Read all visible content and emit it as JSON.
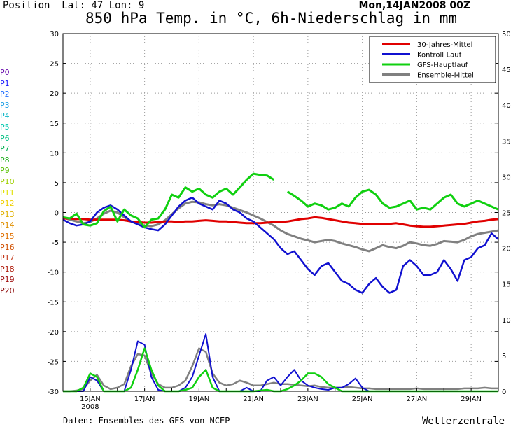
{
  "header": {
    "position_text": "Position  Lat: 47 Lon: 9",
    "date_text": "Mon,14JAN2008 00Z"
  },
  "footer": {
    "source": "Daten: Ensembles des GFS von NCEP",
    "brand": "Wetterzentrale"
  },
  "members": [
    "P0",
    "P1",
    "P2",
    "P3",
    "P4",
    "P5",
    "P6",
    "P7",
    "P8",
    "P9",
    "P10",
    "P11",
    "P12",
    "P13",
    "P14",
    "P15",
    "P16",
    "P17",
    "P18",
    "P19",
    "P20"
  ],
  "member_colors": [
    "#6a0dad",
    "#1a1aff",
    "#1f6fff",
    "#1ea0e6",
    "#10b8c8",
    "#00c8b0",
    "#00c080",
    "#00b050",
    "#22b022",
    "#55c000",
    "#a0d000",
    "#e0e000",
    "#f0d000",
    "#e0b000",
    "#e09000",
    "#e07000",
    "#d05000",
    "#c03010",
    "#b02010",
    "#a01010",
    "#901010"
  ],
  "chart_data": {
    "type": "line",
    "title": "850 hPa Temp. in °C, 6h-Niederschlag in mm",
    "x_tick_labels": [
      "15JAN",
      "17JAN",
      "19JAN",
      "21JAN",
      "23JAN",
      "25JAN",
      "27JAN",
      "29JAN"
    ],
    "x_tick_sublabel": "2008",
    "x_range_days": [
      14.0,
      30.0
    ],
    "x_ticks_days": [
      15,
      17,
      19,
      21,
      23,
      25,
      27,
      29
    ],
    "ylim_left": [
      -30,
      30
    ],
    "yticks_left": [
      30,
      25,
      20,
      15,
      10,
      5,
      0,
      -5,
      -10,
      -15,
      -20,
      -25,
      -30
    ],
    "ylim_right": [
      0,
      50
    ],
    "yticks_right": [
      50,
      45,
      40,
      35,
      30,
      25,
      20,
      15,
      10,
      5,
      0
    ],
    "grid": true,
    "legend_position": "top-right",
    "legend": [
      {
        "label": "30-Jahres-Mittel",
        "color": "#e00000"
      },
      {
        "label": "Kontroll-Lauf",
        "color": "#1010d0"
      },
      {
        "label": "GFS-Hauptlauf",
        "color": "#10d010"
      },
      {
        "label": "Ensemble-Mittel",
        "color": "#808080"
      }
    ],
    "temp_x_days": [
      14.0,
      14.25,
      14.5,
      14.75,
      15.0,
      15.25,
      15.5,
      15.75,
      16.0,
      16.25,
      16.5,
      16.75,
      17.0,
      17.25,
      17.5,
      17.75,
      18.0,
      18.25,
      18.5,
      18.75,
      19.0,
      19.25,
      19.5,
      19.75,
      20.0,
      20.25,
      20.5,
      20.75,
      21.0,
      21.25,
      21.5,
      21.75,
      22.0,
      22.25,
      22.5,
      22.75,
      23.0,
      23.25,
      23.5,
      23.75,
      24.0,
      24.25,
      24.5,
      24.75,
      25.0,
      25.25,
      25.5,
      25.75,
      26.0,
      26.25,
      26.5,
      26.75,
      27.0,
      27.25,
      27.5,
      27.75,
      28.0,
      28.25,
      28.5,
      28.75,
      29.0,
      29.25,
      29.5,
      29.75,
      30.0
    ],
    "climate_mean": [
      -1.0,
      -1.0,
      -1.1,
      -1.1,
      -1.2,
      -1.2,
      -1.2,
      -1.2,
      -1.2,
      -1.3,
      -1.5,
      -1.6,
      -1.7,
      -1.7,
      -1.6,
      -1.5,
      -1.5,
      -1.6,
      -1.5,
      -1.5,
      -1.4,
      -1.3,
      -1.4,
      -1.5,
      -1.5,
      -1.6,
      -1.7,
      -1.8,
      -1.8,
      -1.8,
      -1.7,
      -1.6,
      -1.6,
      -1.5,
      -1.3,
      -1.1,
      -1.0,
      -0.8,
      -0.9,
      -1.1,
      -1.3,
      -1.5,
      -1.7,
      -1.8,
      -1.9,
      -2.0,
      -2.0,
      -1.9,
      -1.9,
      -1.8,
      -2.0,
      -2.2,
      -2.3,
      -2.4,
      -2.4,
      -2.3,
      -2.2,
      -2.1,
      -2.0,
      -1.9,
      -1.7,
      -1.5,
      -1.4,
      -1.2,
      -1.1
    ],
    "gfs_main": [
      -0.8,
      -1.0,
      -0.2,
      -2.0,
      -2.2,
      -1.8,
      0.2,
      1.0,
      -1.5,
      0.5,
      -0.5,
      -1.0,
      -2.5,
      -1.2,
      -1.0,
      0.5,
      3.0,
      2.5,
      4.2,
      3.5,
      4.0,
      3.0,
      2.5,
      3.5,
      4.0,
      3.0,
      4.2,
      5.5,
      6.5,
      6.3,
      6.2,
      5.5,
      null,
      3.5,
      2.8,
      2.0,
      1.0,
      1.5,
      1.2,
      0.5,
      0.8,
      1.5,
      1.0,
      2.5,
      3.5,
      3.8,
      3.0,
      1.5,
      0.8,
      1.0,
      1.5,
      2.0,
      0.5,
      0.8,
      0.5,
      1.5,
      2.5,
      3.0,
      1.5,
      1.0,
      1.5,
      2.0,
      1.5,
      1.0,
      0.5
    ],
    "control_run": [
      -1.2,
      -1.8,
      -2.2,
      -2.0,
      -1.5,
      0.0,
      0.8,
      1.2,
      0.5,
      -0.5,
      -1.5,
      -2.0,
      -2.5,
      -2.8,
      -3.0,
      -2.0,
      -0.5,
      1.0,
      2.0,
      2.5,
      1.5,
      1.0,
      0.5,
      2.0,
      1.5,
      0.5,
      0.0,
      -1.0,
      -1.5,
      -2.5,
      -3.5,
      -4.5,
      -6.0,
      -7.0,
      -6.5,
      -8.0,
      -9.5,
      -10.5,
      -9.0,
      -8.5,
      -10.0,
      -11.5,
      -12.0,
      -13.0,
      -13.5,
      -12.0,
      -11.0,
      -12.5,
      -13.5,
      -13.0,
      -9.0,
      -8.0,
      -9.0,
      -10.5,
      -10.5,
      -10.0,
      -8.0,
      -9.5,
      -11.5,
      -8.0,
      -7.5,
      -6.0,
      -5.5,
      -3.5,
      -4.5
    ],
    "ensemble_mean": [
      -0.9,
      -1.2,
      -1.5,
      -1.8,
      -1.6,
      -1.0,
      -0.2,
      0.3,
      0.0,
      -0.8,
      -1.5,
      -1.9,
      -2.2,
      -2.3,
      -2.0,
      -1.3,
      -0.3,
      0.7,
      1.5,
      1.8,
      1.7,
      1.4,
      1.2,
      1.4,
      1.2,
      0.8,
      0.4,
      0.0,
      -0.5,
      -1.0,
      -1.6,
      -2.2,
      -3.0,
      -3.6,
      -4.0,
      -4.4,
      -4.7,
      -5.0,
      -4.8,
      -4.6,
      -4.8,
      -5.2,
      -5.5,
      -5.8,
      -6.2,
      -6.5,
      -6.0,
      -5.5,
      -5.8,
      -6.0,
      -5.6,
      -5.0,
      -5.2,
      -5.5,
      -5.6,
      -5.3,
      -4.8,
      -4.9,
      -5.0,
      -4.6,
      -4.0,
      -3.6,
      -3.4,
      -3.2,
      -3.0
    ],
    "precip_x_days": [
      14.0,
      14.25,
      14.5,
      14.75,
      15.0,
      15.25,
      15.5,
      15.75,
      16.0,
      16.25,
      16.5,
      16.75,
      17.0,
      17.25,
      17.5,
      17.75,
      18.0,
      18.25,
      18.5,
      18.75,
      19.0,
      19.25,
      19.5,
      19.75,
      20.0,
      20.25,
      20.5,
      20.75,
      21.0,
      21.25,
      21.5,
      21.75,
      22.0,
      22.25,
      22.5,
      22.75,
      23.0,
      23.25,
      23.5,
      23.75,
      24.0,
      24.25,
      24.5,
      24.75,
      25.0,
      25.25,
      25.5,
      25.75,
      26.0,
      26.25,
      26.5,
      26.75,
      27.0,
      27.25,
      27.5,
      27.75,
      28.0,
      28.25,
      28.5,
      28.75,
      29.0,
      29.25,
      29.5,
      29.75,
      30.0
    ],
    "precip_gfs_main": [
      0,
      0,
      0,
      0.5,
      2.5,
      2.0,
      0,
      0,
      0,
      0,
      0.5,
      3.0,
      6.0,
      3.0,
      0.8,
      0,
      0,
      0,
      0.2,
      0.5,
      2.0,
      3.0,
      0.5,
      0,
      0,
      0,
      0,
      0,
      0,
      0.1,
      0.2,
      0,
      0,
      0.3,
      0.8,
      1.5,
      2.5,
      2.5,
      2.0,
      1.0,
      0.5,
      0,
      0,
      0,
      0,
      0,
      0,
      0,
      0,
      0,
      0,
      0,
      0,
      0,
      0,
      0,
      0,
      0,
      0,
      0,
      0,
      0,
      0,
      0,
      0
    ],
    "precip_control": [
      0,
      0,
      0,
      0,
      2.0,
      1.5,
      0,
      0,
      0,
      0,
      3.0,
      7.0,
      6.5,
      2.0,
      0.2,
      0,
      0,
      0,
      0.5,
      2.0,
      5.0,
      8.0,
      2.0,
      0,
      0,
      0,
      0,
      0.5,
      0,
      0,
      1.5,
      2.0,
      0.8,
      2.0,
      3.0,
      1.5,
      0.8,
      0.5,
      0.3,
      0.2,
      0.5,
      0.5,
      1.0,
      1.8,
      0.5,
      0,
      0,
      0,
      0,
      0,
      0,
      0,
      0,
      0,
      0,
      0,
      0,
      0,
      0,
      0,
      0,
      0,
      0,
      0,
      0
    ],
    "precip_ensemble_mean": [
      0,
      0,
      0.1,
      0.3,
      1.5,
      2.3,
      0.8,
      0.3,
      0.5,
      1.0,
      3.5,
      5.2,
      5.0,
      2.5,
      1.0,
      0.5,
      0.5,
      0.8,
      1.5,
      3.5,
      6.0,
      5.5,
      2.5,
      1.2,
      0.8,
      1.0,
      1.5,
      1.2,
      0.8,
      0.8,
      1.0,
      1.2,
      1.0,
      1.0,
      0.9,
      0.8,
      0.7,
      0.8,
      0.6,
      0.5,
      0.5,
      0.5,
      0.6,
      0.5,
      0.4,
      0.4,
      0.3,
      0.3,
      0.3,
      0.3,
      0.3,
      0.3,
      0.4,
      0.3,
      0.3,
      0.3,
      0.3,
      0.3,
      0.3,
      0.4,
      0.4,
      0.4,
      0.5,
      0.4,
      0.4
    ]
  }
}
